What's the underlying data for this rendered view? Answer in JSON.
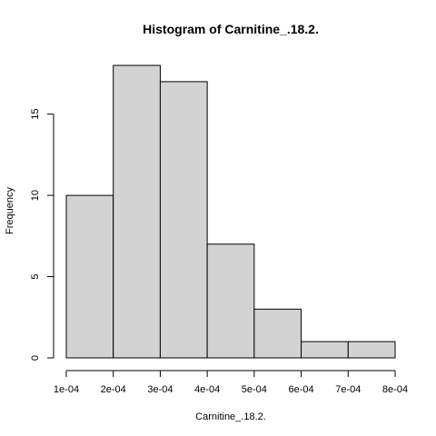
{
  "chart_data": {
    "type": "bar",
    "title": "Histogram of Carnitine_.18.2.",
    "xlabel": "Carnitine_.18.2.",
    "ylabel": "Frequency",
    "bins": [
      {
        "from": 0.0001,
        "to": 0.0002,
        "count": 10
      },
      {
        "from": 0.0002,
        "to": 0.0003,
        "count": 18
      },
      {
        "from": 0.0003,
        "to": 0.0004,
        "count": 17
      },
      {
        "from": 0.0004,
        "to": 0.0005,
        "count": 7
      },
      {
        "from": 0.0005,
        "to": 0.0006,
        "count": 3
      },
      {
        "from": 0.0006,
        "to": 0.0007,
        "count": 1
      },
      {
        "from": 0.0007,
        "to": 0.0008,
        "count": 1
      }
    ],
    "x_ticks": [
      0.0001,
      0.0002,
      0.0003,
      0.0004,
      0.0005,
      0.0006,
      0.0007,
      0.0008
    ],
    "x_tick_labels": [
      "1e-04",
      "2e-04",
      "3e-04",
      "4e-04",
      "5e-04",
      "6e-04",
      "7e-04",
      "8e-04"
    ],
    "y_ticks": [
      0,
      5,
      10,
      15
    ],
    "y_tick_labels": [
      "0",
      "5",
      "10",
      "15"
    ],
    "xlim": [
      0.0001,
      0.0008
    ],
    "ylim": [
      0,
      18
    ],
    "grid": false,
    "colors": {
      "bar_fill": "#d3d3d3",
      "bar_stroke": "#000000",
      "axis": "#000000",
      "background": "#ffffff"
    }
  }
}
